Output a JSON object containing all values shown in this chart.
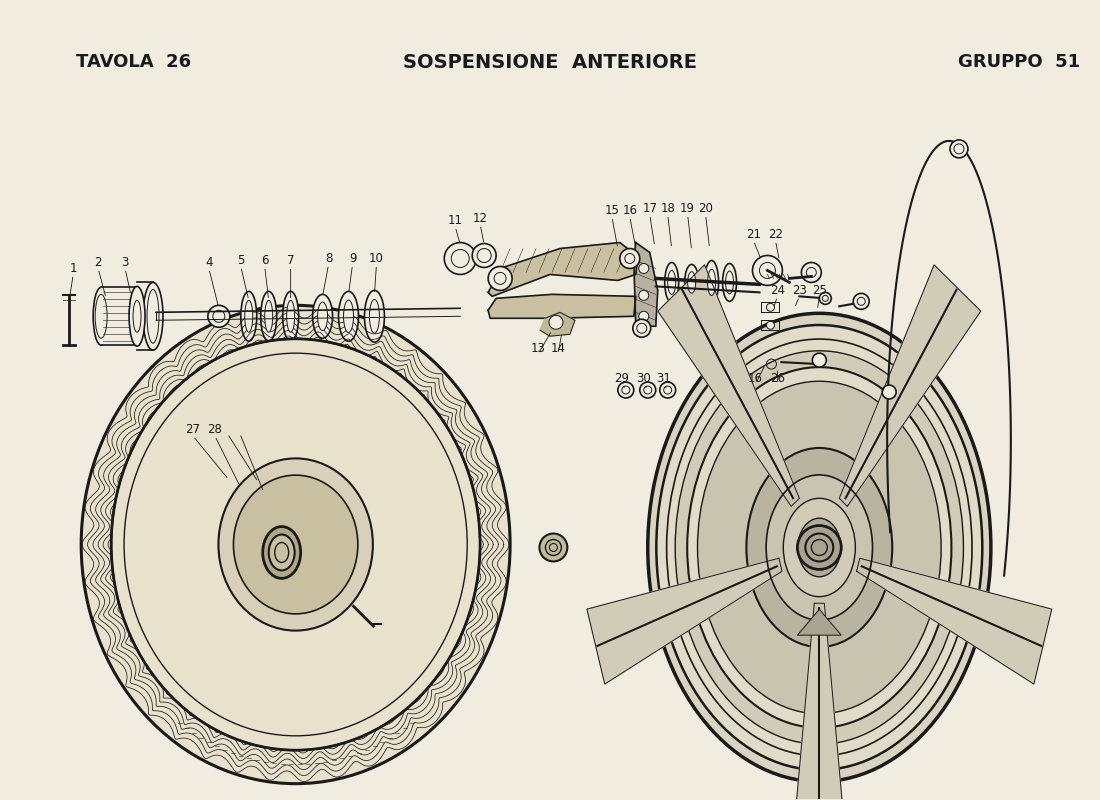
{
  "title_left": "TAVOLA  26",
  "title_center": "SOSPENSIONE  ANTERIORE",
  "title_right": "GRUPPO  51",
  "background_color": "#f0ece0",
  "text_color": "#1a1a1a",
  "title_fontsize": 13,
  "fig_width": 11.0,
  "fig_height": 8.0,
  "dpi": 100
}
